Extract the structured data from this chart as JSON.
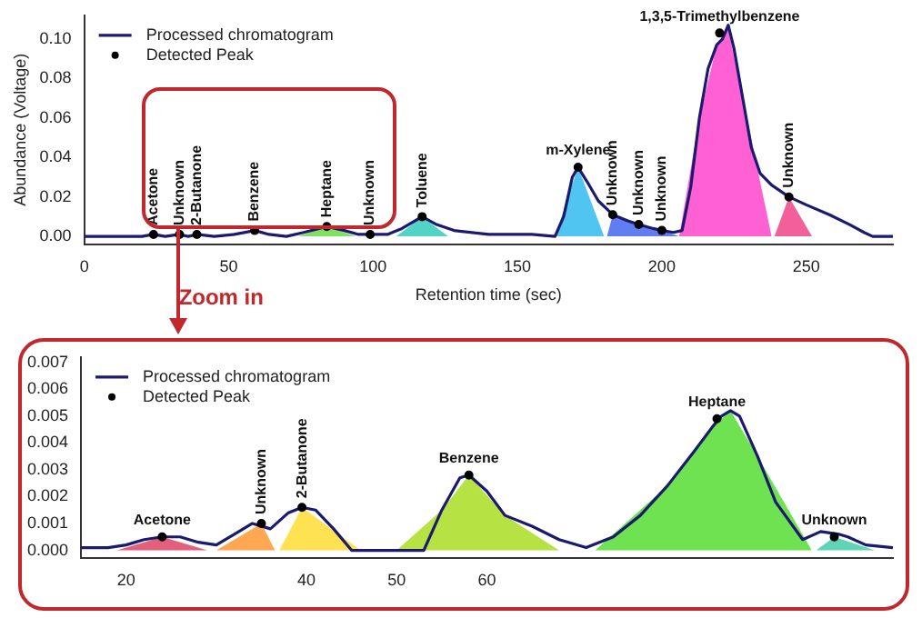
{
  "chart_data": [
    {
      "type": "line",
      "xlabel": "Retention time (sec)",
      "ylabel": "Abundance (Voltage)",
      "xlim": [
        0,
        280
      ],
      "ylim": [
        -0.004,
        0.112
      ],
      "xticks": [
        0,
        50,
        100,
        150,
        200,
        250
      ],
      "yticks": [
        {
          "value": 0,
          "label": "0.00"
        },
        {
          "value": 0.02,
          "label": "0.02"
        },
        {
          "value": 0.04,
          "label": "0.04"
        },
        {
          "value": 0.06,
          "label": "0.06"
        },
        {
          "value": 0.08,
          "label": "0.08"
        },
        {
          "value": 0.1,
          "label": "0.10"
        }
      ],
      "grid": false,
      "legend": "top left",
      "series": [
        {
          "type": "area",
          "color": "#66dd44",
          "x": [
            74,
            84,
            94
          ],
          "values": [
            0,
            0.005,
            0
          ]
        },
        {
          "type": "area",
          "color": "#33ccbb",
          "x": [
            108,
            117,
            126
          ],
          "values": [
            0,
            0.01,
            0
          ]
        },
        {
          "type": "area",
          "color": "#33bbee",
          "x": [
            163,
            171,
            180
          ],
          "values": [
            0,
            0.035,
            0
          ]
        },
        {
          "type": "area",
          "color": "#4466ee",
          "x": [
            181,
            183,
            192,
            200,
            206
          ],
          "values": [
            0,
            0.011,
            0.006,
            0.003,
            0
          ]
        },
        {
          "type": "area",
          "color": "#ff44cc",
          "x": [
            206,
            213,
            219,
            223,
            228,
            238
          ],
          "values": [
            0,
            0.06,
            0.097,
            0.105,
            0.07,
            0
          ]
        },
        {
          "type": "area",
          "color": "#ee4488",
          "x": [
            239,
            244,
            252
          ],
          "values": [
            0,
            0.02,
            0
          ]
        },
        {
          "type": "line",
          "name": "Processed chromatogram",
          "color": "#1a1a6e",
          "x": [
            0,
            10,
            20,
            24,
            28,
            33,
            36,
            39,
            45,
            52,
            59,
            64,
            70,
            76,
            84,
            90,
            95,
            99,
            105,
            110,
            117,
            122,
            128,
            140,
            155,
            163,
            166,
            169,
            171,
            174,
            178,
            183,
            188,
            192,
            197,
            200,
            204,
            207,
            210,
            213,
            216,
            219,
            221,
            223,
            225,
            228,
            231,
            234,
            238,
            244,
            250,
            258,
            265,
            270,
            273,
            280
          ],
          "values": [
            0,
            0,
            0,
            0.001,
            0,
            0.001,
            0,
            0.001,
            0,
            0.001,
            0.003,
            0.001,
            0,
            0.002,
            0.005,
            0.003,
            0.001,
            0.001,
            0.001,
            0.004,
            0.01,
            0.006,
            0.003,
            0.001,
            0.001,
            0,
            0.01,
            0.03,
            0.035,
            0.028,
            0.018,
            0.011,
            0.008,
            0.006,
            0.004,
            0.003,
            0.002,
            0.003,
            0.025,
            0.06,
            0.085,
            0.097,
            0.1,
            0.107,
            0.095,
            0.07,
            0.045,
            0.032,
            0.026,
            0.02,
            0.016,
            0.011,
            0.006,
            0.002,
            0,
            0
          ]
        },
        {
          "type": "scatter",
          "name": "Detected Peak",
          "color": "#000000",
          "x": [
            24,
            33,
            39,
            59,
            84,
            99,
            117,
            171,
            183,
            192,
            200,
            220,
            244
          ],
          "values": [
            0.001,
            0.001,
            0.001,
            0.003,
            0.005,
            0.001,
            0.01,
            0.035,
            0.011,
            0.006,
            0.003,
            0.103,
            0.02
          ]
        }
      ],
      "annotations": [
        {
          "text": "Acetone",
          "x": 24,
          "y": 0.001
        },
        {
          "text": "Unknown",
          "x": 33,
          "y": 0.001
        },
        {
          "text": "2-Butanone",
          "x": 39,
          "y": 0.001
        },
        {
          "text": "Benzene",
          "x": 59,
          "y": 0.003
        },
        {
          "text": "Heptane",
          "x": 84,
          "y": 0.005
        },
        {
          "text": "Unknown",
          "x": 99,
          "y": 0.001
        },
        {
          "text": "Toluene",
          "x": 117,
          "y": 0.01
        },
        {
          "text": "m-Xylene",
          "x": 171,
          "y": 0.035
        },
        {
          "text": "Unknown",
          "x": 183,
          "y": 0.011
        },
        {
          "text": "Unknown",
          "x": 192,
          "y": 0.006
        },
        {
          "text": "Unknown",
          "x": 200,
          "y": 0.003
        },
        {
          "text": "1,3,5-Trimethylbenzene",
          "x": 220,
          "y": 0.103
        },
        {
          "text": "Unknown",
          "x": 244,
          "y": 0.02
        },
        "Zoom in"
      ]
    },
    {
      "type": "line",
      "xlim": [
        15,
        105
      ],
      "ylim": [
        -0.0003,
        0.0072
      ],
      "xticks": [
        20,
        40,
        50,
        60
      ],
      "yticks": [
        {
          "value": 0,
          "label": "0.000"
        },
        {
          "value": 0.001,
          "label": "0.001"
        },
        {
          "value": 0.002,
          "label": "0.002"
        },
        {
          "value": 0.003,
          "label": "0.003"
        },
        {
          "value": 0.004,
          "label": "0.004"
        },
        {
          "value": 0.005,
          "label": "0.005"
        },
        {
          "value": 0.006,
          "label": "0.006"
        },
        {
          "value": 0.007,
          "label": "0.007"
        }
      ],
      "grid": false,
      "legend": "top left",
      "series": [
        {
          "type": "area",
          "color": "#dd4466",
          "x": [
            19,
            24,
            29
          ],
          "values": [
            0,
            0.0005,
            0
          ]
        },
        {
          "type": "area",
          "color": "#ff9933",
          "x": [
            30,
            35,
            36.5
          ],
          "values": [
            0,
            0.001,
            0
          ]
        },
        {
          "type": "area",
          "color": "#ffdd33",
          "x": [
            37,
            39.5,
            46
          ],
          "values": [
            0,
            0.0016,
            0
          ]
        },
        {
          "type": "area",
          "color": "#aadd22",
          "x": [
            50,
            55,
            58,
            62,
            68
          ],
          "values": [
            0,
            0.0015,
            0.0028,
            0.0013,
            0
          ]
        },
        {
          "type": "area",
          "color": "#55dd33",
          "x": [
            72,
            80,
            85,
            87,
            90,
            96
          ],
          "values": [
            0,
            0.0024,
            0.0046,
            0.0052,
            0.0035,
            0
          ]
        },
        {
          "type": "area",
          "color": "#44ccaa",
          "x": [
            96.5,
            98.5,
            103
          ],
          "values": [
            0,
            0.0005,
            0
          ]
        },
        {
          "type": "line",
          "name": "Processed chromatogram",
          "color": "#1a1a6e",
          "x": [
            15,
            18,
            20,
            22,
            24,
            26,
            28,
            30,
            32,
            34,
            36,
            38,
            39.5,
            41,
            43,
            45,
            48,
            53,
            55,
            57,
            58,
            60,
            62,
            65,
            68,
            71,
            74,
            77,
            80,
            83,
            85,
            86,
            87,
            88,
            90,
            92,
            95,
            97,
            99,
            100,
            102,
            105
          ],
          "values": [
            0.0001,
            0.0001,
            0.0002,
            0.0004,
            0.0005,
            0.0005,
            0.0003,
            0.0002,
            0.0006,
            0.001,
            0.0008,
            0.0014,
            0.0016,
            0.0015,
            0.0008,
            0,
            0,
            0,
            0.0015,
            0.0027,
            0.0028,
            0.0022,
            0.0013,
            0.0009,
            0.0004,
            0.0001,
            0.0005,
            0.0013,
            0.0024,
            0.0037,
            0.0046,
            0.005,
            0.0052,
            0.005,
            0.0035,
            0.0018,
            0.0004,
            0.0007,
            0.0006,
            0.0005,
            0.0002,
            0.0001
          ]
        },
        {
          "type": "scatter",
          "name": "Detected Peak",
          "color": "#000000",
          "x": [
            24,
            35,
            39.5,
            58,
            85.5,
            98.5
          ],
          "values": [
            0.0005,
            0.001,
            0.0016,
            0.0028,
            0.0049,
            0.0005
          ]
        }
      ],
      "annotations": [
        {
          "text": "Acetone",
          "x": 24,
          "y": 0.0005
        },
        {
          "text": "Unknown",
          "x": 35,
          "y": 0.001
        },
        {
          "text": "2-Butanone",
          "x": 39.5,
          "y": 0.0016
        },
        {
          "text": "Benzene",
          "x": 58,
          "y": 0.0028
        },
        {
          "text": "Heptane",
          "x": 85.5,
          "y": 0.0049
        },
        {
          "text": "Unknown",
          "x": 98.5,
          "y": 0.0005
        }
      ]
    }
  ]
}
